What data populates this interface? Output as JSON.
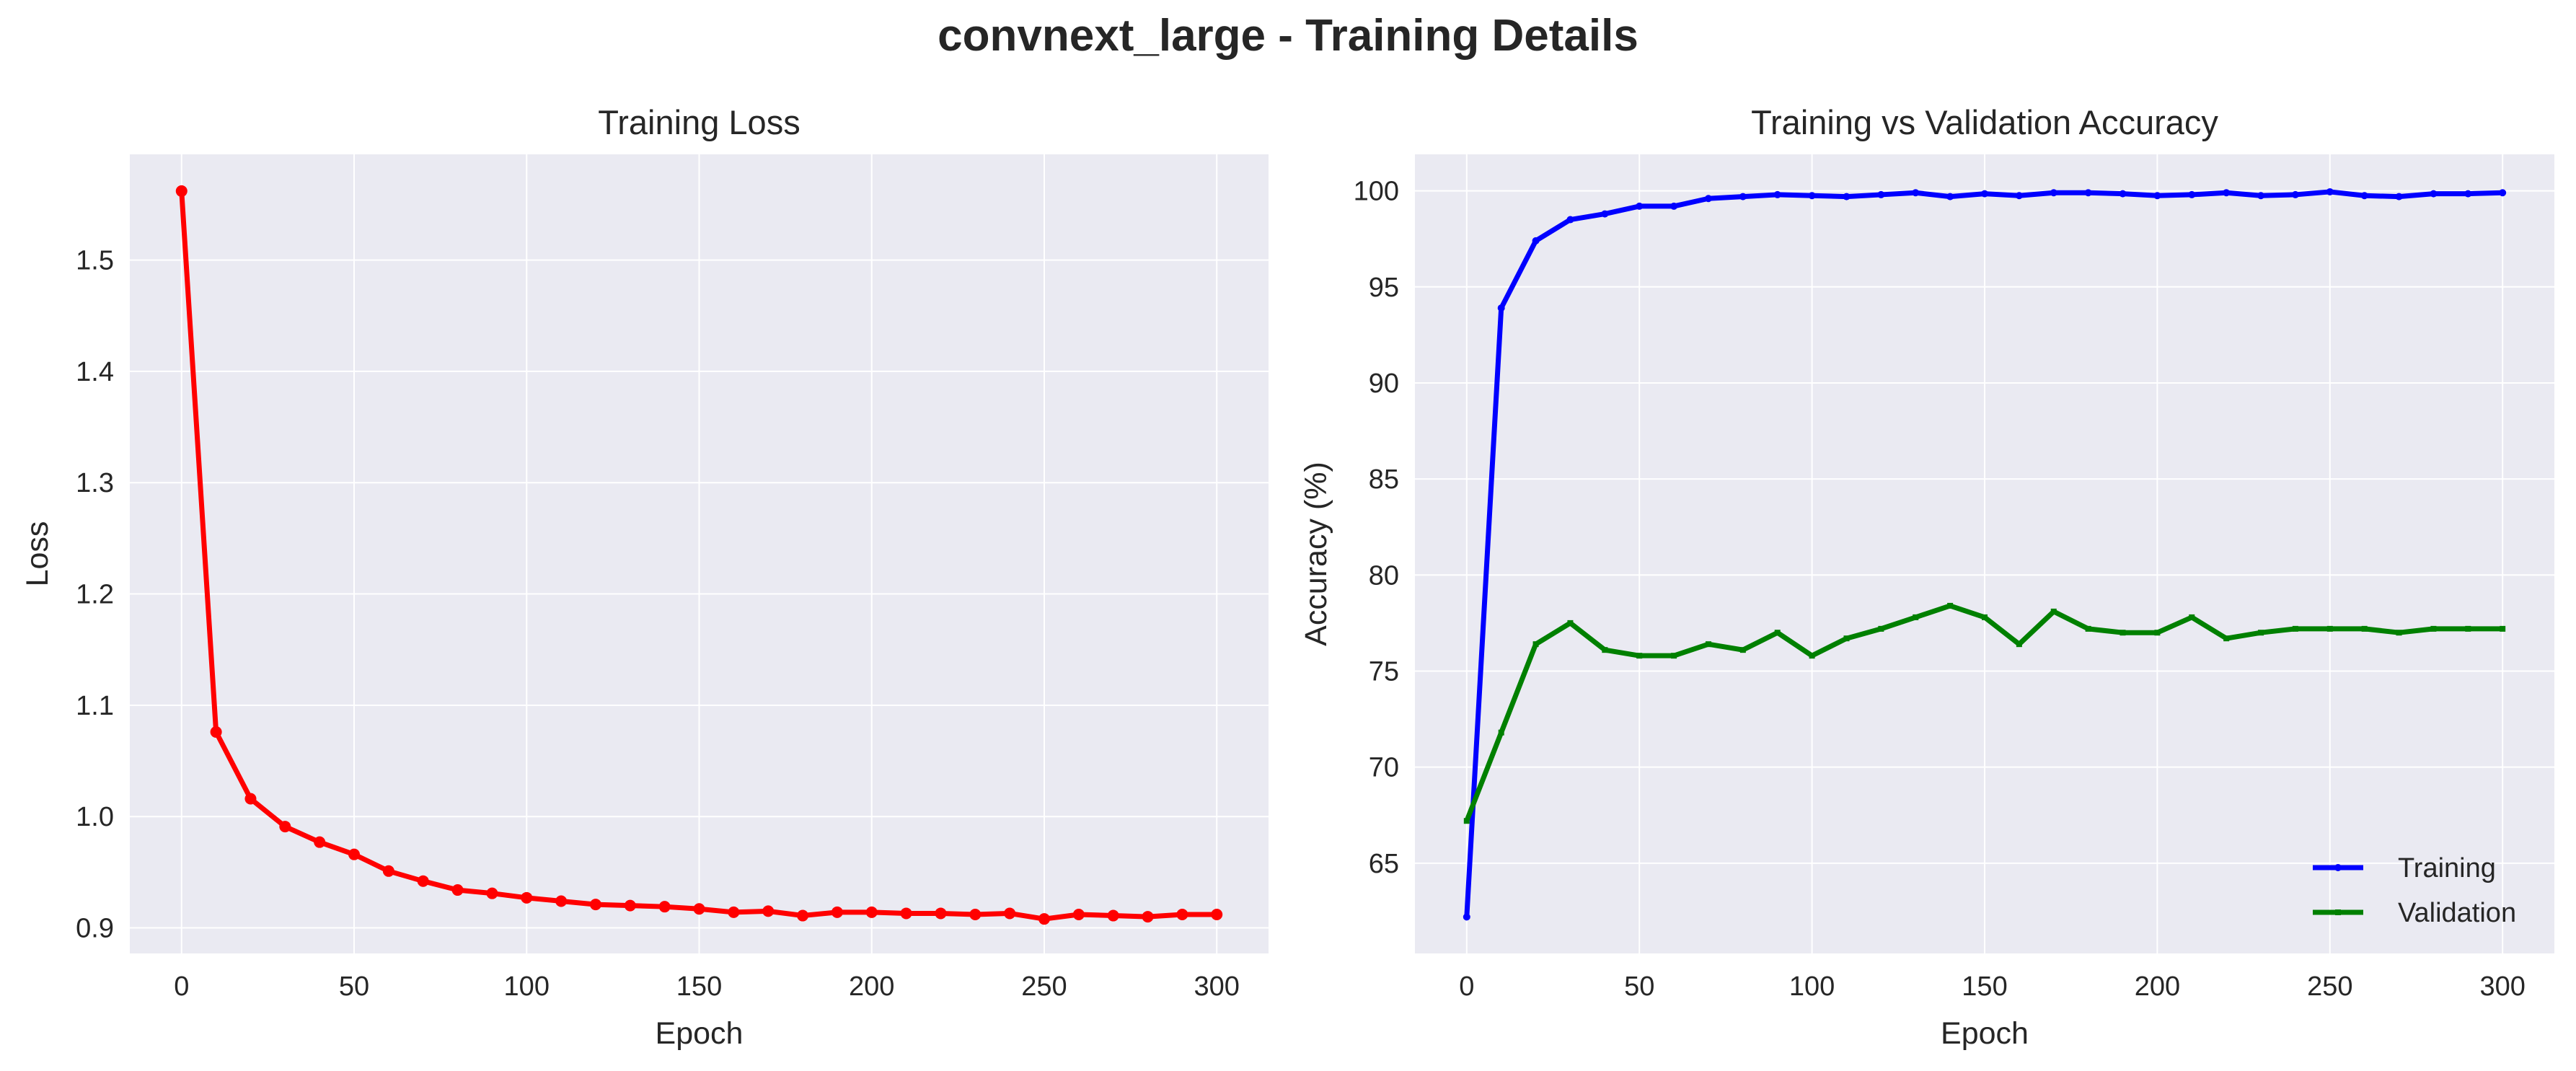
{
  "figure": {
    "suptitle": "convnext_large - Training Details",
    "colors": {
      "plot_bg": "#eaeaf2",
      "grid": "#ffffff",
      "text": "#262626"
    }
  },
  "chart_data": [
    {
      "type": "line",
      "title": "Training Loss",
      "xlabel": "Epoch",
      "ylabel": "Loss",
      "xlim": [
        -15,
        315
      ],
      "ylim": [
        0.877,
        1.595
      ],
      "xticks": [
        0,
        50,
        100,
        150,
        200,
        250,
        300
      ],
      "yticks": [
        0.9,
        1.0,
        1.1,
        1.2,
        1.3,
        1.4,
        1.5
      ],
      "ytick_labels": [
        "0.9",
        "1.0",
        "1.1",
        "1.2",
        "1.3",
        "1.4",
        "1.5"
      ],
      "grid": true,
      "series": [
        {
          "color": "#ff0000",
          "marker": "circle",
          "x": [
            0,
            10,
            20,
            30,
            40,
            50,
            60,
            70,
            80,
            90,
            100,
            110,
            120,
            130,
            140,
            150,
            160,
            170,
            180,
            190,
            200,
            210,
            220,
            230,
            240,
            250,
            260,
            270,
            280,
            290,
            300
          ],
          "y": [
            1.562,
            1.076,
            1.016,
            0.991,
            0.977,
            0.966,
            0.951,
            0.942,
            0.934,
            0.931,
            0.927,
            0.924,
            0.921,
            0.92,
            0.919,
            0.917,
            0.914,
            0.915,
            0.911,
            0.914,
            0.914,
            0.913,
            0.913,
            0.912,
            0.913,
            0.908,
            0.912,
            0.911,
            0.91,
            0.912,
            0.912
          ]
        }
      ]
    },
    {
      "type": "line",
      "title": "Training vs Validation Accuracy",
      "xlabel": "Epoch",
      "ylabel": "Accuracy (%)",
      "xlim": [
        -15,
        315
      ],
      "ylim": [
        60.3,
        101.9
      ],
      "xticks": [
        0,
        50,
        100,
        150,
        200,
        250,
        300
      ],
      "yticks": [
        65,
        70,
        75,
        80,
        85,
        90,
        95,
        100
      ],
      "ytick_labels": [
        "65",
        "70",
        "75",
        "80",
        "85",
        "90",
        "95",
        "100"
      ],
      "grid": true,
      "legend_position": "bottom-right",
      "series": [
        {
          "name": "Training",
          "color": "#0000ff",
          "marker": "circle",
          "x": [
            0,
            10,
            20,
            30,
            40,
            50,
            60,
            70,
            80,
            90,
            100,
            110,
            120,
            130,
            140,
            150,
            160,
            170,
            180,
            190,
            200,
            210,
            220,
            230,
            240,
            250,
            260,
            270,
            280,
            290,
            300
          ],
          "y": [
            62.2,
            93.9,
            97.4,
            98.5,
            98.8,
            99.2,
            99.2,
            99.6,
            99.7,
            99.8,
            99.75,
            99.7,
            99.8,
            99.9,
            99.7,
            99.85,
            99.75,
            99.9,
            99.9,
            99.85,
            99.75,
            99.8,
            99.9,
            99.75,
            99.8,
            99.95,
            99.75,
            99.7,
            99.85,
            99.85,
            99.9
          ]
        },
        {
          "name": "Validation",
          "color": "#008000",
          "marker": "square",
          "x": [
            0,
            10,
            20,
            30,
            40,
            50,
            60,
            70,
            80,
            90,
            100,
            110,
            120,
            130,
            140,
            150,
            160,
            170,
            180,
            190,
            200,
            210,
            220,
            230,
            240,
            250,
            260,
            270,
            280,
            290,
            300
          ],
          "y": [
            67.2,
            71.8,
            76.4,
            77.5,
            76.1,
            75.8,
            75.8,
            76.4,
            76.1,
            77.0,
            75.8,
            76.7,
            77.2,
            77.8,
            78.4,
            77.8,
            76.4,
            78.1,
            77.2,
            77.0,
            77.0,
            77.8,
            76.7,
            77.0,
            77.2,
            77.2,
            77.2,
            77.0,
            77.2,
            77.2,
            77.2
          ]
        }
      ]
    }
  ]
}
